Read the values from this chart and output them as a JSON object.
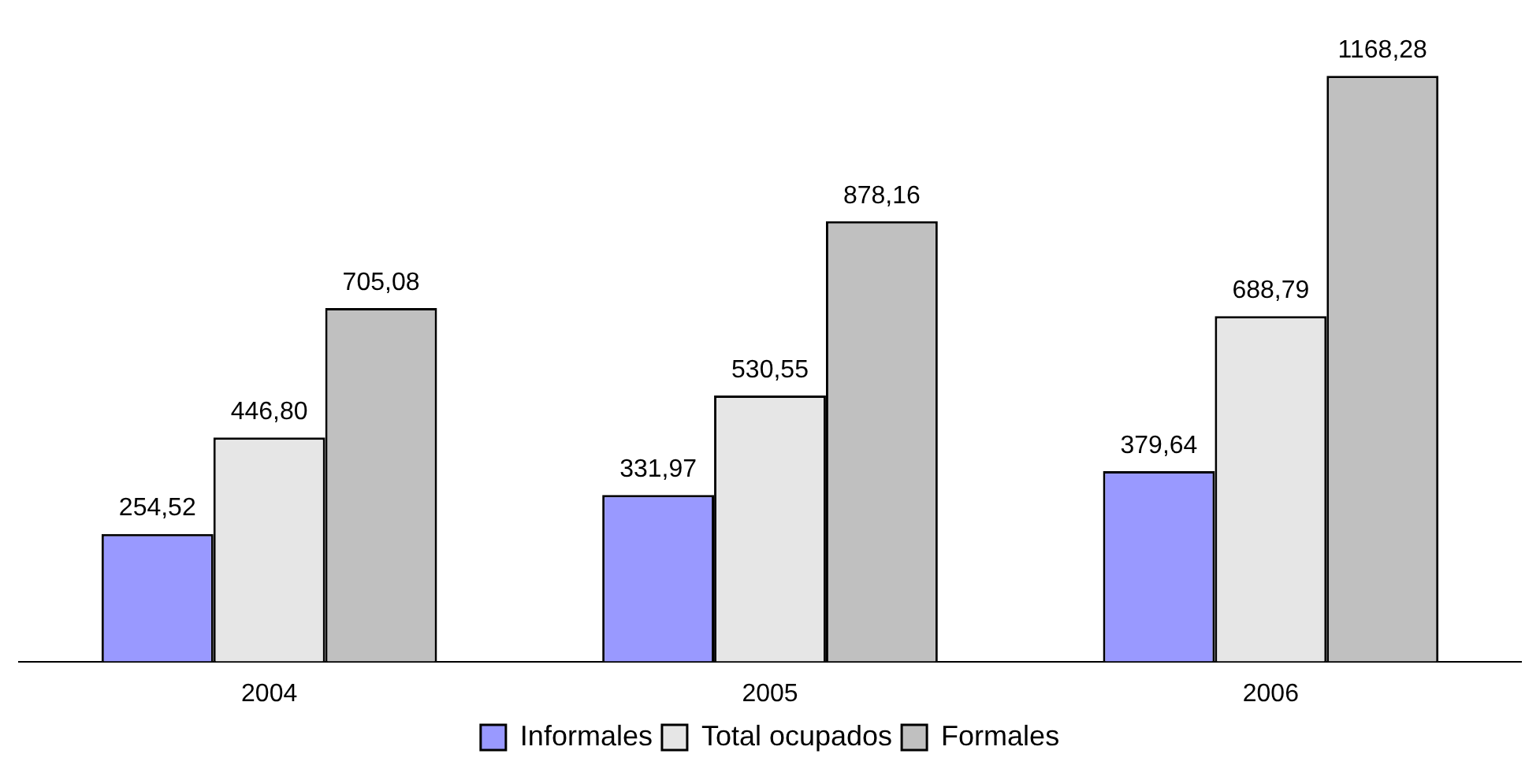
{
  "chart_data": {
    "type": "bar",
    "categories": [
      "2004",
      "2005",
      "2006"
    ],
    "series": [
      {
        "name": "Informales",
        "color": "#9999ff",
        "values": [
          254.52,
          331.97,
          379.64
        ],
        "value_labels": [
          "254,52",
          "331,97",
          "379,64"
        ]
      },
      {
        "name": "Total ocupados",
        "color": "#e6e6e6",
        "values": [
          446.8,
          530.55,
          688.79
        ],
        "value_labels": [
          "446,80",
          "530,55",
          "688,79"
        ]
      },
      {
        "name": "Formales",
        "color": "#c0c0c0",
        "values": [
          705.08,
          878.16,
          1168.28
        ],
        "value_labels": [
          "705,08",
          "878,16",
          "1168,28"
        ]
      }
    ],
    "legend": "bottom",
    "grid": false
  }
}
